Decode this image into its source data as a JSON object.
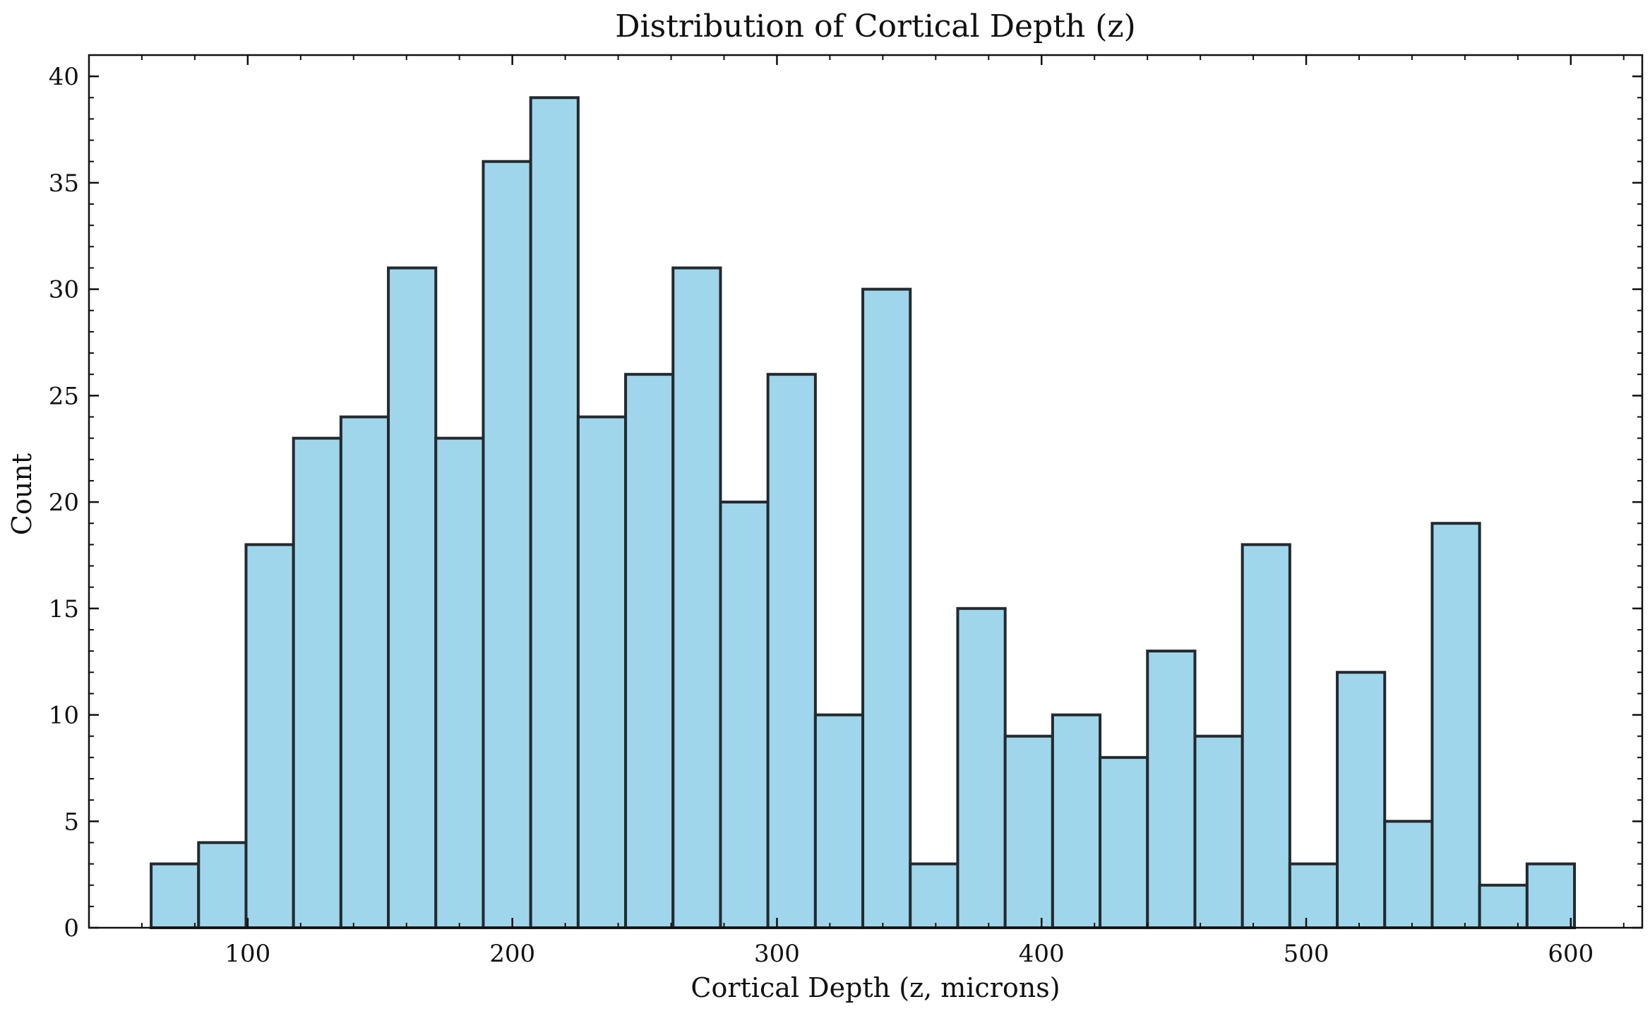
{
  "chart_data": {
    "type": "bar",
    "title": "Distribution of Cortical Depth (z)",
    "xlabel": "Cortical Depth (z, microns)",
    "ylabel": "Count",
    "xlim": [
      40,
      627
    ],
    "ylim": [
      0,
      41
    ],
    "xticks": [
      100,
      200,
      300,
      400,
      500,
      600
    ],
    "yticks": [
      0,
      5,
      10,
      15,
      20,
      25,
      30,
      35,
      40
    ],
    "bin_start": 63.5,
    "bin_width": 17.93,
    "values": [
      3,
      4,
      18,
      23,
      24,
      31,
      23,
      36,
      39,
      24,
      26,
      31,
      20,
      26,
      10,
      30,
      3,
      15,
      9,
      10,
      8,
      13,
      9,
      18,
      3,
      12,
      5,
      19,
      2,
      3
    ],
    "bar_color": "#a0d6ec",
    "edge_color": "#222a2f",
    "grid": false
  }
}
